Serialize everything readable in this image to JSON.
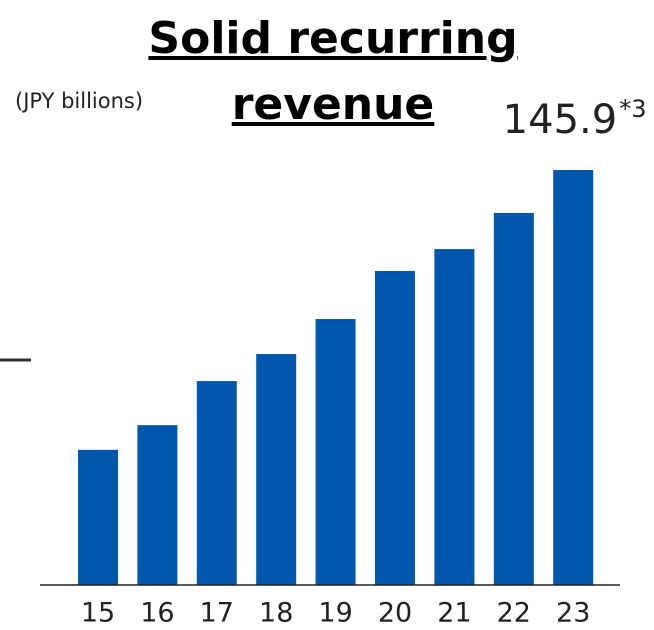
{
  "chart_data": {
    "type": "bar",
    "title": "Solid recurring revenue",
    "subtitle": "(JPY billions)",
    "categories": [
      "15",
      "16",
      "17",
      "18",
      "19",
      "20",
      "21",
      "22",
      "23"
    ],
    "values": [
      47.5,
      56.2,
      71.7,
      81.2,
      93.5,
      110.4,
      118.1,
      130.8,
      145.9
    ],
    "value_labels": [
      null,
      null,
      null,
      null,
      null,
      null,
      null,
      null,
      "145.9"
    ],
    "footnote_mark": "*3",
    "color": "#0057ab"
  }
}
